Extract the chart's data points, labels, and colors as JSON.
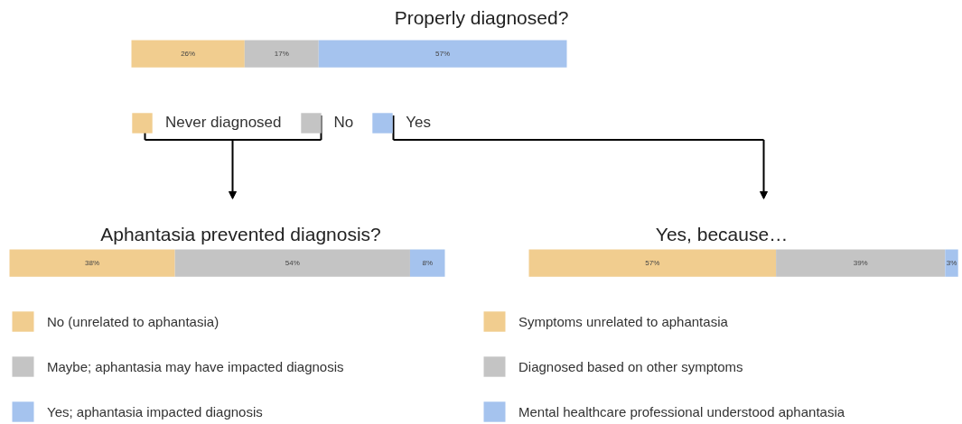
{
  "chart_data": [
    {
      "type": "bar",
      "orientation": "horizontal",
      "stacked": true,
      "title": "Properly diagnosed?",
      "categories": [
        null
      ],
      "legend": "bottom",
      "grid": false,
      "series": [
        {
          "name": "Never diagnosed",
          "color": "#f1cd8f",
          "values": [
            26
          ],
          "value_labels": [
            "26%"
          ]
        },
        {
          "name": "No",
          "color": "#c4c4c4",
          "values": [
            17
          ],
          "value_labels": [
            "17%"
          ]
        },
        {
          "name": "Yes",
          "color": "#a5c3ee",
          "values": [
            57
          ],
          "value_labels": [
            "57%"
          ]
        }
      ]
    },
    {
      "type": "bar",
      "orientation": "horizontal",
      "stacked": true,
      "title": "Aphantasia prevented diagnosis?",
      "categories": [
        null
      ],
      "legend": "bottom",
      "grid": false,
      "series": [
        {
          "name": "No (unrelated to aphantasia)",
          "color": "#f1cd8f",
          "values": [
            38
          ],
          "value_labels": [
            "38%"
          ]
        },
        {
          "name": "Maybe; aphantasia may have impacted diagnosis",
          "color": "#c4c4c4",
          "values": [
            54
          ],
          "value_labels": [
            "54%"
          ]
        },
        {
          "name": "Yes; aphantasia impacted diagnosis",
          "color": "#a5c3ee",
          "values": [
            8
          ],
          "value_labels": [
            "8%"
          ]
        }
      ]
    },
    {
      "type": "bar",
      "orientation": "horizontal",
      "stacked": true,
      "title": "Yes, because…",
      "categories": [
        null
      ],
      "legend": "bottom",
      "grid": false,
      "series": [
        {
          "name": "Symptoms unrelated to aphantasia",
          "color": "#f1cd8f",
          "values": [
            57
          ],
          "value_labels": [
            "57%"
          ]
        },
        {
          "name": "Diagnosed based on other symptoms",
          "color": "#c4c4c4",
          "values": [
            39
          ],
          "value_labels": [
            "39%"
          ]
        },
        {
          "name": "Mental healthcare professional understood aphantasia",
          "color": "#a5c3ee",
          "values": [
            3
          ],
          "value_labels": [
            "3%"
          ]
        }
      ]
    }
  ]
}
